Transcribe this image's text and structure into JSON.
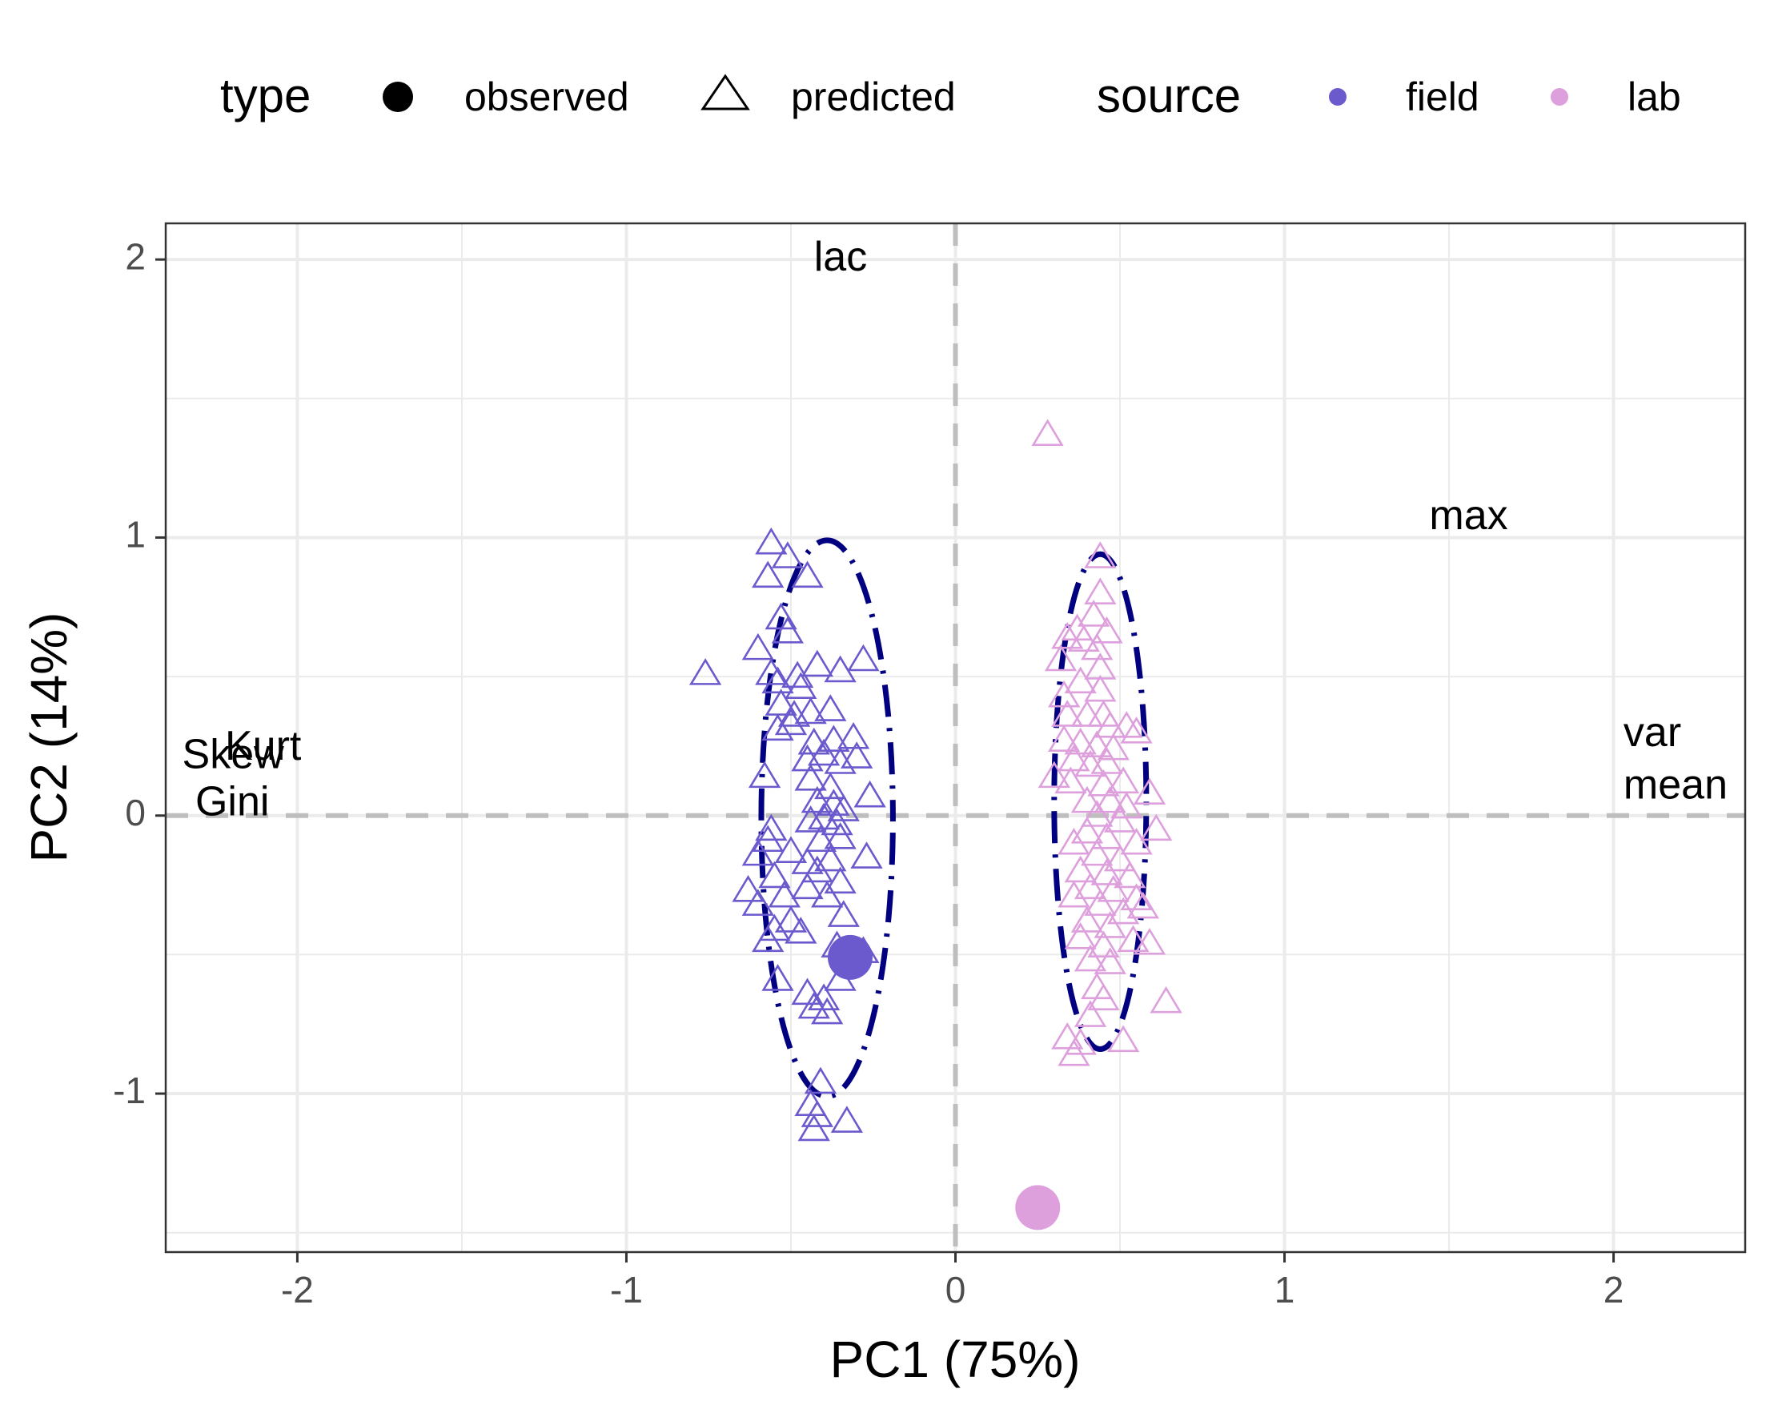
{
  "legend": {
    "type_title": "type",
    "type_items": [
      {
        "label": "observed",
        "shape": "filled-circle"
      },
      {
        "label": "predicted",
        "shape": "open-triangle"
      }
    ],
    "source_title": "source",
    "source_items": [
      {
        "label": "field",
        "color": "#6a5acd"
      },
      {
        "label": "lab",
        "color": "#dda0dd"
      }
    ]
  },
  "chart_data": {
    "type": "scatter",
    "xlabel": "PC1 (75%)",
    "ylabel": "PC2 (14%)",
    "xlim": [
      -2.4,
      2.4
    ],
    "ylim": [
      -1.57,
      2.13
    ],
    "xticks": [
      -2,
      -1,
      0,
      1,
      2
    ],
    "yticks": [
      -1,
      0,
      1,
      2
    ],
    "x_tick_labels": [
      "-2",
      "-1",
      "0",
      "1",
      "2"
    ],
    "y_tick_labels": [
      "-1",
      "0",
      "1",
      "2"
    ],
    "grid": true,
    "reference_lines": {
      "x": 0,
      "y": 0,
      "style": "dashed",
      "color": "#bebebe"
    },
    "colors": {
      "field": "#6a5acd",
      "lab": "#dda0dd",
      "ellipse": "#000080"
    },
    "observed": [
      {
        "source": "field",
        "x": -0.32,
        "y": -0.51
      },
      {
        "source": "lab",
        "x": 0.25,
        "y": -1.41
      }
    ],
    "ellipses": [
      {
        "source": "field",
        "cx": -0.39,
        "cy": -0.01,
        "rx": 0.2,
        "ry": 1.0,
        "style": "dot-dash"
      },
      {
        "source": "lab",
        "cx": 0.44,
        "cy": 0.05,
        "rx": 0.14,
        "ry": 0.89,
        "style": "dot-dash"
      }
    ],
    "loadings": [
      {
        "label": "lac",
        "x": -0.43,
        "y": 2.0
      },
      {
        "label": "max",
        "x": 1.44,
        "y": 1.07
      },
      {
        "label": "var",
        "x": 2.03,
        "y": 0.29
      },
      {
        "label": "mean",
        "x": 2.03,
        "y": 0.1
      },
      {
        "label": "Skew",
        "x": -2.35,
        "y": 0.21
      },
      {
        "label": "Kurt",
        "x": -2.22,
        "y": 0.24
      },
      {
        "label": "Gini",
        "x": -2.31,
        "y": 0.04
      }
    ],
    "predicted": [
      {
        "source": "field",
        "x": -0.56,
        "y": 0.98
      },
      {
        "source": "field",
        "x": -0.57,
        "y": 0.86
      },
      {
        "source": "field",
        "x": -0.51,
        "y": 0.93
      },
      {
        "source": "field",
        "x": -0.45,
        "y": 0.86
      },
      {
        "source": "field",
        "x": -0.53,
        "y": 0.71
      },
      {
        "source": "field",
        "x": -0.51,
        "y": 0.66
      },
      {
        "source": "field",
        "x": -0.6,
        "y": 0.6
      },
      {
        "source": "field",
        "x": -0.76,
        "y": 0.51
      },
      {
        "source": "field",
        "x": -0.56,
        "y": 0.51
      },
      {
        "source": "field",
        "x": -0.54,
        "y": 0.48
      },
      {
        "source": "field",
        "x": -0.48,
        "y": 0.5
      },
      {
        "source": "field",
        "x": -0.47,
        "y": 0.46
      },
      {
        "source": "field",
        "x": -0.42,
        "y": 0.54
      },
      {
        "source": "field",
        "x": -0.35,
        "y": 0.52
      },
      {
        "source": "field",
        "x": -0.28,
        "y": 0.56
      },
      {
        "source": "field",
        "x": -0.53,
        "y": 0.4
      },
      {
        "source": "field",
        "x": -0.49,
        "y": 0.36
      },
      {
        "source": "field",
        "x": -0.44,
        "y": 0.37
      },
      {
        "source": "field",
        "x": -0.38,
        "y": 0.38
      },
      {
        "source": "field",
        "x": -0.54,
        "y": 0.31
      },
      {
        "source": "field",
        "x": -0.5,
        "y": 0.33
      },
      {
        "source": "field",
        "x": -0.43,
        "y": 0.26
      },
      {
        "source": "field",
        "x": -0.37,
        "y": 0.27
      },
      {
        "source": "field",
        "x": -0.31,
        "y": 0.28
      },
      {
        "source": "field",
        "x": -0.45,
        "y": 0.2
      },
      {
        "source": "field",
        "x": -0.4,
        "y": 0.22
      },
      {
        "source": "field",
        "x": -0.35,
        "y": 0.19
      },
      {
        "source": "field",
        "x": -0.3,
        "y": 0.21
      },
      {
        "source": "field",
        "x": -0.58,
        "y": 0.14
      },
      {
        "source": "field",
        "x": -0.44,
        "y": 0.13
      },
      {
        "source": "field",
        "x": -0.38,
        "y": 0.1
      },
      {
        "source": "field",
        "x": -0.26,
        "y": 0.07
      },
      {
        "source": "field",
        "x": -0.42,
        "y": 0.05
      },
      {
        "source": "field",
        "x": -0.37,
        "y": 0.04
      },
      {
        "source": "field",
        "x": -0.34,
        "y": 0.02
      },
      {
        "source": "field",
        "x": -0.4,
        "y": -0.01
      },
      {
        "source": "field",
        "x": -0.36,
        "y": -0.03
      },
      {
        "source": "field",
        "x": -0.44,
        "y": -0.02
      },
      {
        "source": "field",
        "x": -0.56,
        "y": -0.05
      },
      {
        "source": "field",
        "x": -0.57,
        "y": -0.09
      },
      {
        "source": "field",
        "x": -0.41,
        "y": -0.09
      },
      {
        "source": "field",
        "x": -0.35,
        "y": -0.08
      },
      {
        "source": "field",
        "x": -0.27,
        "y": -0.15
      },
      {
        "source": "field",
        "x": -0.6,
        "y": -0.14
      },
      {
        "source": "field",
        "x": -0.5,
        "y": -0.13
      },
      {
        "source": "field",
        "x": -0.45,
        "y": -0.17
      },
      {
        "source": "field",
        "x": -0.38,
        "y": -0.16
      },
      {
        "source": "field",
        "x": -0.55,
        "y": -0.22
      },
      {
        "source": "field",
        "x": -0.42,
        "y": -0.2
      },
      {
        "source": "field",
        "x": -0.35,
        "y": -0.24
      },
      {
        "source": "field",
        "x": -0.63,
        "y": -0.27
      },
      {
        "source": "field",
        "x": -0.6,
        "y": -0.32
      },
      {
        "source": "field",
        "x": -0.52,
        "y": -0.29
      },
      {
        "source": "field",
        "x": -0.45,
        "y": -0.26
      },
      {
        "source": "field",
        "x": -0.39,
        "y": -0.29
      },
      {
        "source": "field",
        "x": -0.34,
        "y": -0.36
      },
      {
        "source": "field",
        "x": -0.5,
        "y": -0.38
      },
      {
        "source": "field",
        "x": -0.55,
        "y": -0.41
      },
      {
        "source": "field",
        "x": -0.47,
        "y": -0.42
      },
      {
        "source": "field",
        "x": -0.57,
        "y": -0.45
      },
      {
        "source": "field",
        "x": -0.36,
        "y": -0.47
      },
      {
        "source": "field",
        "x": -0.28,
        "y": -0.49
      },
      {
        "source": "field",
        "x": -0.54,
        "y": -0.59
      },
      {
        "source": "field",
        "x": -0.35,
        "y": -0.59
      },
      {
        "source": "field",
        "x": -0.45,
        "y": -0.64
      },
      {
        "source": "field",
        "x": -0.4,
        "y": -0.66
      },
      {
        "source": "field",
        "x": -0.43,
        "y": -0.69
      },
      {
        "source": "field",
        "x": -0.39,
        "y": -0.71
      },
      {
        "source": "field",
        "x": -0.41,
        "y": -0.96
      },
      {
        "source": "field",
        "x": -0.44,
        "y": -1.04
      },
      {
        "source": "field",
        "x": -0.42,
        "y": -1.08
      },
      {
        "source": "field",
        "x": -0.33,
        "y": -1.1
      },
      {
        "source": "field",
        "x": -0.43,
        "y": -1.13
      },
      {
        "source": "lab",
        "x": 0.28,
        "y": 1.37
      },
      {
        "source": "lab",
        "x": 0.44,
        "y": 0.93
      },
      {
        "source": "lab",
        "x": 0.44,
        "y": 0.8
      },
      {
        "source": "lab",
        "x": 0.42,
        "y": 0.72
      },
      {
        "source": "lab",
        "x": 0.37,
        "y": 0.67
      },
      {
        "source": "lab",
        "x": 0.46,
        "y": 0.66
      },
      {
        "source": "lab",
        "x": 0.34,
        "y": 0.64
      },
      {
        "source": "lab",
        "x": 0.39,
        "y": 0.63
      },
      {
        "source": "lab",
        "x": 0.43,
        "y": 0.6
      },
      {
        "source": "lab",
        "x": 0.32,
        "y": 0.56
      },
      {
        "source": "lab",
        "x": 0.44,
        "y": 0.53
      },
      {
        "source": "lab",
        "x": 0.38,
        "y": 0.48
      },
      {
        "source": "lab",
        "x": 0.33,
        "y": 0.43
      },
      {
        "source": "lab",
        "x": 0.44,
        "y": 0.45
      },
      {
        "source": "lab",
        "x": 0.4,
        "y": 0.36
      },
      {
        "source": "lab",
        "x": 0.45,
        "y": 0.36
      },
      {
        "source": "lab",
        "x": 0.34,
        "y": 0.36
      },
      {
        "source": "lab",
        "x": 0.47,
        "y": 0.32
      },
      {
        "source": "lab",
        "x": 0.52,
        "y": 0.32
      },
      {
        "source": "lab",
        "x": 0.55,
        "y": 0.3
      },
      {
        "source": "lab",
        "x": 0.33,
        "y": 0.27
      },
      {
        "source": "lab",
        "x": 0.38,
        "y": 0.26
      },
      {
        "source": "lab",
        "x": 0.43,
        "y": 0.25
      },
      {
        "source": "lab",
        "x": 0.48,
        "y": 0.24
      },
      {
        "source": "lab",
        "x": 0.36,
        "y": 0.2
      },
      {
        "source": "lab",
        "x": 0.41,
        "y": 0.18
      },
      {
        "source": "lab",
        "x": 0.46,
        "y": 0.19
      },
      {
        "source": "lab",
        "x": 0.3,
        "y": 0.14
      },
      {
        "source": "lab",
        "x": 0.35,
        "y": 0.12
      },
      {
        "source": "lab",
        "x": 0.45,
        "y": 0.11
      },
      {
        "source": "lab",
        "x": 0.51,
        "y": 0.12
      },
      {
        "source": "lab",
        "x": 0.4,
        "y": 0.05
      },
      {
        "source": "lab",
        "x": 0.47,
        "y": 0.05
      },
      {
        "source": "lab",
        "x": 0.52,
        "y": 0.03
      },
      {
        "source": "lab",
        "x": 0.59,
        "y": 0.08
      },
      {
        "source": "lab",
        "x": 0.43,
        "y": 0.0
      },
      {
        "source": "lab",
        "x": 0.5,
        "y": -0.02
      },
      {
        "source": "lab",
        "x": 0.4,
        "y": -0.06
      },
      {
        "source": "lab",
        "x": 0.46,
        "y": -0.08
      },
      {
        "source": "lab",
        "x": 0.36,
        "y": -0.1
      },
      {
        "source": "lab",
        "x": 0.55,
        "y": -0.1
      },
      {
        "source": "lab",
        "x": 0.61,
        "y": -0.05
      },
      {
        "source": "lab",
        "x": 0.43,
        "y": -0.14
      },
      {
        "source": "lab",
        "x": 0.5,
        "y": -0.16
      },
      {
        "source": "lab",
        "x": 0.38,
        "y": -0.2
      },
      {
        "source": "lab",
        "x": 0.46,
        "y": -0.21
      },
      {
        "source": "lab",
        "x": 0.53,
        "y": -0.22
      },
      {
        "source": "lab",
        "x": 0.41,
        "y": -0.26
      },
      {
        "source": "lab",
        "x": 0.48,
        "y": -0.27
      },
      {
        "source": "lab",
        "x": 0.55,
        "y": -0.3
      },
      {
        "source": "lab",
        "x": 0.36,
        "y": -0.29
      },
      {
        "source": "lab",
        "x": 0.44,
        "y": -0.32
      },
      {
        "source": "lab",
        "x": 0.51,
        "y": -0.35
      },
      {
        "source": "lab",
        "x": 0.57,
        "y": -0.33
      },
      {
        "source": "lab",
        "x": 0.4,
        "y": -0.38
      },
      {
        "source": "lab",
        "x": 0.47,
        "y": -0.4
      },
      {
        "source": "lab",
        "x": 0.38,
        "y": -0.44
      },
      {
        "source": "lab",
        "x": 0.45,
        "y": -0.47
      },
      {
        "source": "lab",
        "x": 0.54,
        "y": -0.45
      },
      {
        "source": "lab",
        "x": 0.59,
        "y": -0.46
      },
      {
        "source": "lab",
        "x": 0.41,
        "y": -0.52
      },
      {
        "source": "lab",
        "x": 0.47,
        "y": -0.53
      },
      {
        "source": "lab",
        "x": 0.43,
        "y": -0.62
      },
      {
        "source": "lab",
        "x": 0.45,
        "y": -0.66
      },
      {
        "source": "lab",
        "x": 0.64,
        "y": -0.67
      },
      {
        "source": "lab",
        "x": 0.41,
        "y": -0.72
      },
      {
        "source": "lab",
        "x": 0.34,
        "y": -0.8
      },
      {
        "source": "lab",
        "x": 0.38,
        "y": -0.82
      },
      {
        "source": "lab",
        "x": 0.51,
        "y": -0.81
      },
      {
        "source": "lab",
        "x": 0.36,
        "y": -0.86
      }
    ]
  }
}
